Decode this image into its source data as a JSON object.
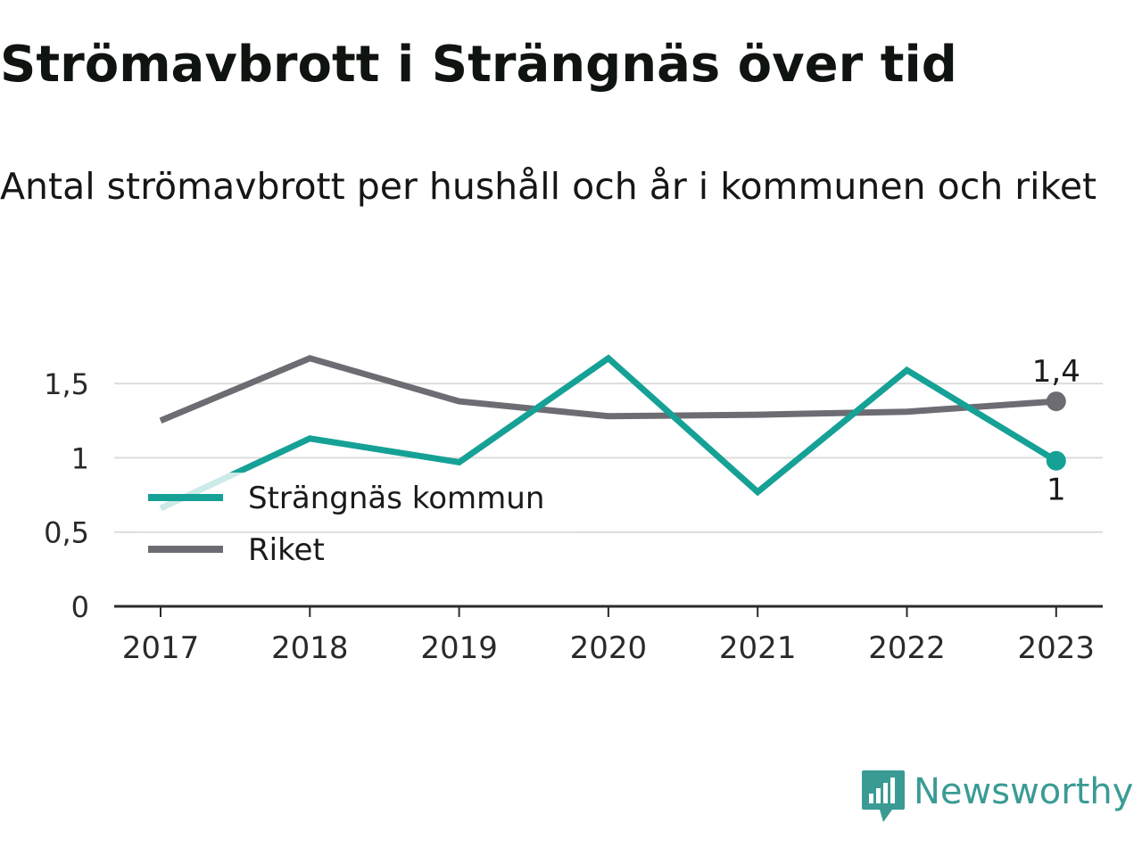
{
  "title": "Strömavbrott i Strängnäs över tid",
  "subtitle": "Antal strömavbrott per hushåll och år i kommunen och riket",
  "brand": {
    "name": "Newsworthy",
    "color": "#3a9b95"
  },
  "chart_data": {
    "type": "line",
    "categories": [
      "2017",
      "2018",
      "2019",
      "2020",
      "2021",
      "2022",
      "2023"
    ],
    "series": [
      {
        "name": "Strängnäs kommun",
        "color": "#16a196",
        "values": [
          0.66,
          1.13,
          0.97,
          1.67,
          0.77,
          1.59,
          0.98
        ],
        "end_label": "1"
      },
      {
        "name": "Riket",
        "color": "#6e6c73",
        "values": [
          1.25,
          1.67,
          1.38,
          1.28,
          1.29,
          1.31,
          1.38
        ],
        "end_label": "1,4"
      }
    ],
    "yticks": [
      {
        "value": 0,
        "label": "0"
      },
      {
        "value": 0.5,
        "label": "0,5"
      },
      {
        "value": 1,
        "label": "1"
      },
      {
        "value": 1.5,
        "label": "1,5"
      }
    ],
    "ylim": [
      0,
      1.7
    ],
    "grid": true,
    "legend_position": "bottom-left",
    "xlabel": "",
    "ylabel": ""
  }
}
